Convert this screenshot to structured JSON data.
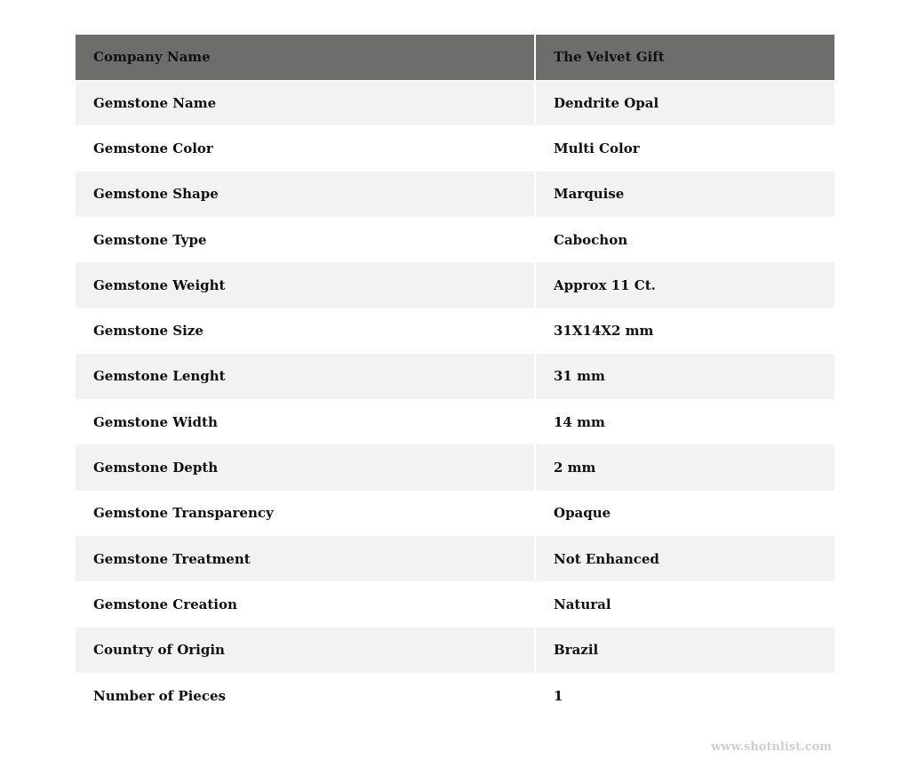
{
  "header": {
    "label": "Company Name",
    "value": "The Velvet Gift"
  },
  "rows": [
    {
      "label": "Gemstone Name",
      "value": "Dendrite Opal"
    },
    {
      "label": "Gemstone Color",
      "value": "Multi Color"
    },
    {
      "label": "Gemstone Shape",
      "value": "Marquise"
    },
    {
      "label": "Gemstone Type",
      "value": "Cabochon"
    },
    {
      "label": "Gemstone Weight",
      "value": "Approx 11 Ct."
    },
    {
      "label": "Gemstone Size",
      "value": "31X14X2 mm"
    },
    {
      "label": "Gemstone Lenght",
      "value": "31 mm"
    },
    {
      "label": "Gemstone Width",
      "value": "14 mm"
    },
    {
      "label": "Gemstone Depth",
      "value": "2 mm"
    },
    {
      "label": "Gemstone Transparency",
      "value": "Opaque"
    },
    {
      "label": "Gemstone Treatment",
      "value": "Not Enhanced"
    },
    {
      "label": "Gemstone Creation",
      "value": "Natural"
    },
    {
      "label": "Country of Origin",
      "value": "Brazil"
    },
    {
      "label": "Number of Pieces",
      "value": "1"
    }
  ],
  "watermark": "www.shotnlist.com",
  "colors": {
    "header_bg": "#6d6d6b",
    "stripe_bg": "#f2f2f2"
  }
}
